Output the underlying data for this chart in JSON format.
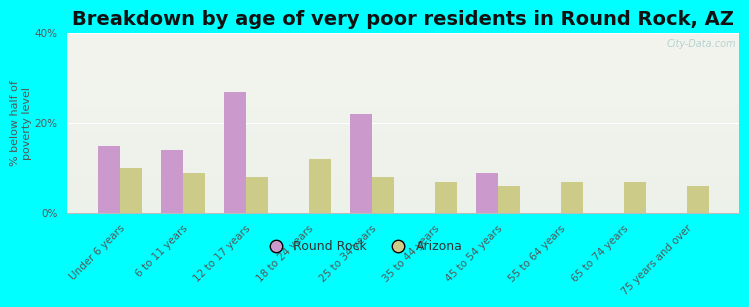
{
  "title": "Breakdown by age of very poor residents in Round Rock, AZ",
  "ylabel": "% below half of\npoverty level",
  "categories": [
    "Under 6 years",
    "6 to 11 years",
    "12 to 17 years",
    "18 to 24 years",
    "25 to 34 years",
    "35 to 44 years",
    "45 to 54 years",
    "55 to 64 years",
    "65 to 74 years",
    "75 years and over"
  ],
  "round_rock": [
    15.0,
    14.0,
    27.0,
    0.0,
    22.0,
    0.0,
    9.0,
    0.0,
    0.0,
    0.0
  ],
  "arizona": [
    10.0,
    9.0,
    8.0,
    12.0,
    8.0,
    7.0,
    6.0,
    7.0,
    7.0,
    6.0
  ],
  "round_rock_color": "#cc99cc",
  "arizona_color": "#cccc88",
  "background_color": "#00ffff",
  "ylim": [
    0,
    40
  ],
  "yticks": [
    0,
    20,
    40
  ],
  "ytick_labels": [
    "0%",
    "20%",
    "40%"
  ],
  "bar_width": 0.35,
  "title_fontsize": 14,
  "axis_label_fontsize": 8,
  "tick_fontsize": 7.5,
  "legend_labels": [
    "Round Rock",
    "Arizona"
  ],
  "watermark": "City-Data.com"
}
